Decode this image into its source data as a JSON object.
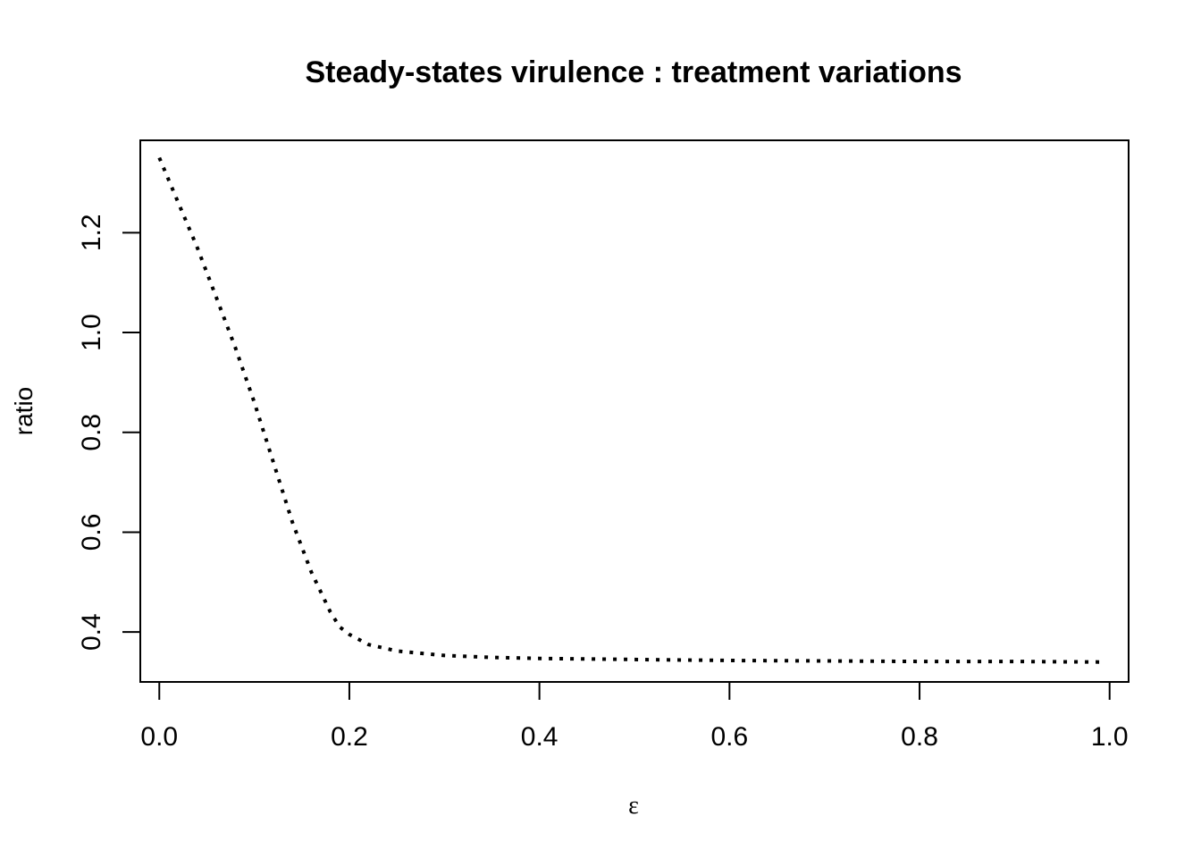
{
  "chart_data": {
    "type": "line",
    "title": "Steady-states virulence : treatment variations",
    "xlabel": "ε",
    "ylabel": "ratio",
    "xlim": [
      -0.02,
      1.02
    ],
    "ylim": [
      0.3,
      1.385
    ],
    "x_ticks": [
      0.0,
      0.2,
      0.4,
      0.6,
      0.8,
      1.0
    ],
    "x_tick_labels": [
      "0.0",
      "0.2",
      "0.4",
      "0.6",
      "0.8",
      "1.0"
    ],
    "y_ticks": [
      0.4,
      0.6,
      0.8,
      1.0,
      1.2
    ],
    "y_tick_labels": [
      "0.4",
      "0.6",
      "0.8",
      "1.0",
      "1.2"
    ],
    "grid": false,
    "line_style": "dotted",
    "line_color": "#000000",
    "series": [
      {
        "x": [
          0.0,
          0.02,
          0.04,
          0.06,
          0.08,
          0.1,
          0.12,
          0.14,
          0.16,
          0.18,
          0.19,
          0.2,
          0.22,
          0.25,
          0.3,
          0.35,
          0.4,
          0.5,
          0.6,
          0.7,
          0.8,
          0.9,
          0.99
        ],
        "y": [
          1.35,
          1.26,
          1.17,
          1.07,
          0.97,
          0.86,
          0.74,
          0.62,
          0.52,
          0.44,
          0.41,
          0.395,
          0.375,
          0.362,
          0.353,
          0.349,
          0.347,
          0.345,
          0.343,
          0.342,
          0.341,
          0.341,
          0.34
        ]
      }
    ]
  }
}
